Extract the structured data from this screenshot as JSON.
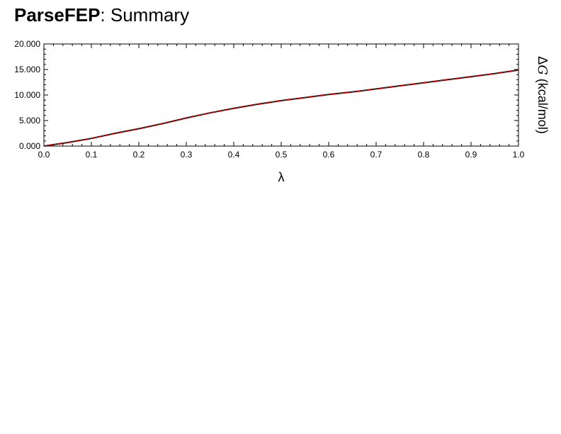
{
  "header": {
    "title_bold": "ParseFEP",
    "title_rest": ": Summary"
  },
  "chart_data": {
    "type": "line",
    "xlabel": "λ",
    "ylabel_delta": "Δ",
    "ylabel_var": "G",
    "ylabel_units": " (kcal/mol)",
    "xlim": [
      0.0,
      1.0
    ],
    "ylim": [
      0.0,
      20.0
    ],
    "x_ticks": [
      "0.0",
      "0.1",
      "0.2",
      "0.3",
      "0.4",
      "0.5",
      "0.6",
      "0.7",
      "0.8",
      "0.9",
      "1.0"
    ],
    "y_ticks": [
      "0.000",
      "5.000",
      "10.000",
      "15.000",
      "20.000"
    ],
    "grid": false,
    "series": [
      {
        "color": "#000000",
        "x": [
          0.0,
          0.05,
          0.1,
          0.15,
          0.2,
          0.25,
          0.3,
          0.35,
          0.4,
          0.45,
          0.5,
          0.55,
          0.6,
          0.65,
          0.7,
          0.75,
          0.8,
          0.85,
          0.9,
          0.95,
          1.0
        ],
        "y": [
          0.0,
          0.7,
          1.5,
          2.5,
          3.4,
          4.4,
          5.5,
          6.5,
          7.4,
          8.2,
          8.9,
          9.5,
          10.1,
          10.6,
          11.2,
          11.8,
          12.4,
          13.0,
          13.6,
          14.2,
          14.9
        ]
      },
      {
        "color": "#e00000",
        "x": [
          0.0,
          0.05,
          0.1,
          0.15,
          0.2,
          0.25,
          0.3,
          0.35,
          0.4,
          0.45,
          0.5,
          0.55,
          0.6,
          0.65,
          0.7,
          0.75,
          0.8,
          0.85,
          0.9,
          0.95,
          1.0
        ],
        "y": [
          0.0,
          0.7,
          1.5,
          2.5,
          3.4,
          4.4,
          5.5,
          6.5,
          7.4,
          8.2,
          8.9,
          9.5,
          10.1,
          10.6,
          11.2,
          11.8,
          12.4,
          13.0,
          13.6,
          14.2,
          14.9
        ]
      }
    ]
  }
}
